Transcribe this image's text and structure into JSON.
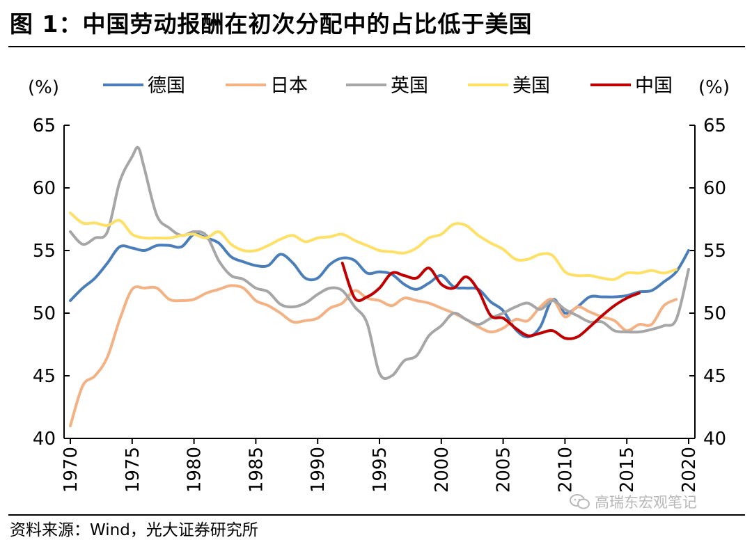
{
  "title": "图 1：中国劳动报酬在初次分配中的占比低于美国",
  "source": "资料来源：Wind，光大证券研究所",
  "watermark": "高瑞东宏观笔记",
  "watermark_icon": "wechat-icon",
  "chart_data": {
    "type": "line",
    "ylabel_left": "(%)",
    "ylabel_right": "(%)",
    "ylim": [
      40,
      65
    ],
    "xlim": [
      1970,
      2020
    ],
    "yticks": [
      40,
      45,
      50,
      55,
      60,
      65
    ],
    "xticks": [
      1970,
      1975,
      1980,
      1985,
      1990,
      1995,
      2000,
      2005,
      2010,
      2015,
      2020
    ],
    "grid": false,
    "legend_position": "top",
    "series": [
      {
        "name": "德国",
        "color": "#4a7ebb",
        "x": [
          1970,
          1971,
          1972,
          1973,
          1974,
          1975,
          1976,
          1977,
          1978,
          1979,
          1980,
          1981,
          1982,
          1983,
          1984,
          1985,
          1986,
          1987,
          1988,
          1989,
          1990,
          1991,
          1992,
          1993,
          1994,
          1995,
          1996,
          1997,
          1998,
          1999,
          2000,
          2001,
          2002,
          2003,
          2004,
          2005,
          2006,
          2007,
          2008,
          2009,
          2010,
          2011,
          2012,
          2013,
          2014,
          2015,
          2016,
          2017,
          2018,
          2019,
          2020
        ],
        "y": [
          51,
          52,
          52.8,
          54,
          55.3,
          55.2,
          55,
          55.4,
          55.4,
          55.3,
          56.3,
          56,
          55.6,
          54.5,
          54.1,
          53.8,
          53.8,
          54.7,
          54,
          52.8,
          52.8,
          53.9,
          54.4,
          54.2,
          53.2,
          53.3,
          53.1,
          52.3,
          51.9,
          52.4,
          53,
          52.1,
          52,
          51.9,
          50.9,
          50.2,
          48.7,
          48.1,
          48.9,
          51.1,
          50,
          50.5,
          51.3,
          51.3,
          51.3,
          51.4,
          51.7,
          51.8,
          52.5,
          53.3,
          55
        ]
      },
      {
        "name": "日本",
        "color": "#f4b183",
        "x": [
          1970,
          1971,
          1972,
          1973,
          1974,
          1975,
          1976,
          1977,
          1978,
          1979,
          1980,
          1981,
          1982,
          1983,
          1984,
          1985,
          1986,
          1987,
          1988,
          1989,
          1990,
          1991,
          1992,
          1993,
          1994,
          1995,
          1996,
          1997,
          1998,
          1999,
          2000,
          2001,
          2002,
          2003,
          2004,
          2005,
          2006,
          2007,
          2008,
          2009,
          2010,
          2011,
          2012,
          2013,
          2014,
          2015,
          2016,
          2017,
          2018,
          2019
        ],
        "y": [
          41,
          44.2,
          45,
          46.5,
          49.5,
          51.9,
          52,
          52,
          51.1,
          51,
          51.1,
          51.6,
          51.9,
          52.2,
          52,
          51,
          50.6,
          50,
          49.3,
          49.4,
          49.6,
          50.4,
          50.8,
          51.8,
          51.2,
          51,
          50.6,
          51.2,
          51,
          50.8,
          50.4,
          50,
          49.5,
          48.9,
          48.5,
          48.8,
          49.5,
          49.4,
          50.5,
          51.1,
          49.7,
          50.5,
          50.1,
          49.7,
          49.4,
          48.6,
          49.1,
          49.1,
          50.6,
          51.1
        ]
      },
      {
        "name": "英国",
        "color": "#a6a6a6",
        "x": [
          1970,
          1971,
          1972,
          1973,
          1974,
          1975,
          1975.5,
          1976,
          1977,
          1978,
          1979,
          1980,
          1981,
          1982,
          1983,
          1984,
          1985,
          1986,
          1987,
          1988,
          1989,
          1990,
          1991,
          1992,
          1993,
          1994,
          1995,
          1996,
          1997,
          1998,
          1999,
          2000,
          2001,
          2002,
          2003,
          2004,
          2005,
          2006,
          2007,
          2008,
          2009,
          2010,
          2011,
          2012,
          2013,
          2014,
          2015,
          2016,
          2017,
          2018,
          2019,
          2020
        ],
        "y": [
          56.5,
          55.5,
          56,
          56.5,
          60.5,
          62.5,
          63.2,
          61.5,
          57.8,
          56.8,
          56.2,
          56.5,
          56.2,
          54.2,
          53,
          52.7,
          52,
          51.7,
          50.7,
          50.5,
          50.8,
          51.5,
          52,
          51.8,
          50.5,
          49.2,
          45.2,
          45,
          46.2,
          46.6,
          48.2,
          49,
          50,
          49.5,
          49.1,
          49.6,
          50,
          50.5,
          50.8,
          50.3,
          51,
          50.3,
          49.8,
          49.3,
          49.3,
          48.6,
          48.5,
          48.5,
          48.7,
          49,
          49.5,
          53.5
        ]
      },
      {
        "name": "美国",
        "color": "#ffe066",
        "x": [
          1970,
          1971,
          1972,
          1973,
          1974,
          1975,
          1976,
          1977,
          1978,
          1979,
          1980,
          1981,
          1982,
          1983,
          1984,
          1985,
          1986,
          1987,
          1988,
          1989,
          1990,
          1991,
          1992,
          1993,
          1994,
          1995,
          1996,
          1997,
          1998,
          1999,
          2000,
          2001,
          2002,
          2003,
          2004,
          2005,
          2006,
          2007,
          2008,
          2009,
          2010,
          2011,
          2012,
          2013,
          2014,
          2015,
          2016,
          2017,
          2018,
          2019
        ],
        "y": [
          58,
          57.2,
          57.2,
          57,
          57.4,
          56.3,
          56,
          56,
          56,
          56.2,
          56.3,
          56,
          56.5,
          55.5,
          55,
          55,
          55.4,
          55.9,
          56.2,
          55.7,
          56,
          56.1,
          56.3,
          55.8,
          55.4,
          55,
          54.9,
          54.8,
          55.2,
          56,
          56.3,
          57.1,
          57,
          56.2,
          55.6,
          55.1,
          54.3,
          54.3,
          54.7,
          54.6,
          53.3,
          53,
          53,
          52.8,
          52.7,
          53.2,
          53.2,
          53.4,
          53.2,
          53.5
        ]
      },
      {
        "name": "中国",
        "color": "#c00000",
        "x": [
          1992,
          1993,
          1994,
          1995,
          1996,
          1997,
          1998,
          1999,
          2000,
          2001,
          2002,
          2003,
          2004,
          2005,
          2006,
          2007,
          2008,
          2009,
          2010,
          2011,
          2012,
          2013,
          2014,
          2015,
          2016
        ],
        "y": [
          54,
          51.2,
          51.3,
          52,
          53.2,
          53,
          52.8,
          53.6,
          52.3,
          52,
          52.9,
          51.8,
          49.8,
          49.6,
          48.8,
          48.2,
          48.4,
          48.6,
          48,
          48.1,
          48.9,
          49.8,
          50.6,
          51.2,
          51.6
        ]
      }
    ]
  }
}
